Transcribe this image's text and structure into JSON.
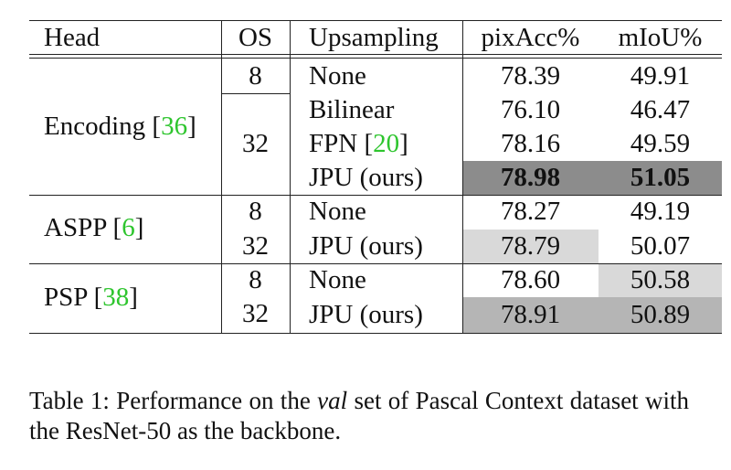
{
  "table": {
    "headers": {
      "head": "Head",
      "os": "OS",
      "upsampling": "Upsampling",
      "pixacc": "pixAcc%",
      "miou": "mIoU%"
    },
    "groups": [
      {
        "name": "Encoding",
        "ref": "36"
      },
      {
        "name": "ASPP",
        "ref": "6"
      },
      {
        "name": "PSP",
        "ref": "38"
      }
    ],
    "os_values": [
      "8",
      "32",
      "8",
      "32",
      "8",
      "32"
    ],
    "rows": [
      {
        "upsampling": "None",
        "ref": "",
        "pixacc": "78.39",
        "miou": "49.91"
      },
      {
        "upsampling": "Bilinear",
        "ref": "",
        "pixacc": "76.10",
        "miou": "46.47"
      },
      {
        "upsampling": "FPN",
        "ref": "20",
        "pixacc": "78.16",
        "miou": "49.59"
      },
      {
        "upsampling": "JPU (ours)",
        "ref": "",
        "pixacc": "78.98",
        "miou": "51.05"
      },
      {
        "upsampling": "None",
        "ref": "",
        "pixacc": "78.27",
        "miou": "49.19"
      },
      {
        "upsampling": "JPU (ours)",
        "ref": "",
        "pixacc": "78.79",
        "miou": "50.07"
      },
      {
        "upsampling": "None",
        "ref": "",
        "pixacc": "78.60",
        "miou": "50.58"
      },
      {
        "upsampling": "JPU (ours)",
        "ref": "",
        "pixacc": "78.91",
        "miou": "50.89"
      }
    ]
  },
  "caption": {
    "label": "Table 1:",
    "text_before": "Performance on the",
    "italic": "val",
    "text_after": "set of Pascal Context dataset with the ResNet-50 as the backbone."
  },
  "colors": {
    "dark_shade": "#8c8c8c",
    "mid_shade": "#b5b5b5",
    "light_shade": "#d9d9d9",
    "citation": "#2ec52e"
  }
}
